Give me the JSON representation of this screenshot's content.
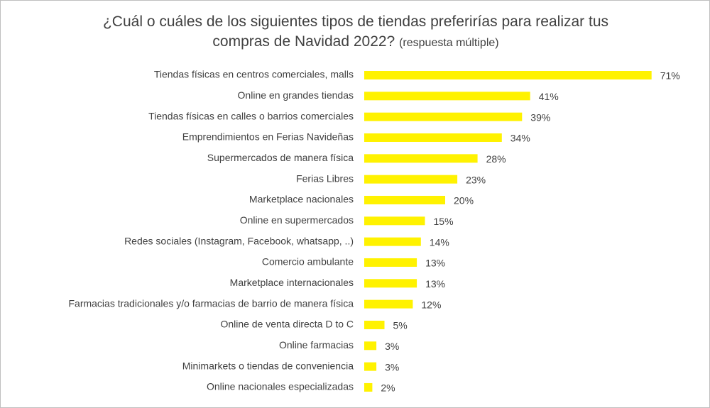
{
  "chart_data": {
    "type": "bar",
    "orientation": "horizontal",
    "title": "¿Cuál o cuáles de los siguientes tipos de tiendas preferirías para realizar tus compras de Navidad 2022?",
    "subtitle": "(respuesta múltiple)",
    "categories": [
      "Tiendas físicas en centros comerciales, malls",
      "Online en grandes tiendas",
      "Tiendas físicas en calles o barrios comerciales",
      "Emprendimientos en Ferias Navideñas",
      "Supermercados de manera física",
      "Ferias Libres",
      "Marketplace nacionales",
      "Online en supermercados",
      "Redes sociales (Instagram, Facebook, whatsapp, ..)",
      "Comercio ambulante",
      "Marketplace internacionales",
      "Farmacias tradicionales y/o farmacias de barrio de manera física",
      "Online de venta directa D to C",
      "Online farmacias",
      "Minimarkets o tiendas de conveniencia",
      "Online nacionales especializadas"
    ],
    "values": [
      71,
      41,
      39,
      34,
      28,
      23,
      20,
      15,
      14,
      13,
      13,
      12,
      5,
      3,
      3,
      2
    ],
    "value_labels": [
      "71%",
      "41%",
      "39%",
      "34%",
      "28%",
      "23%",
      "20%",
      "15%",
      "14%",
      "13%",
      "13%",
      "12%",
      "5%",
      "3%",
      "3%",
      "2%"
    ],
    "color": "#FFF200"
  }
}
